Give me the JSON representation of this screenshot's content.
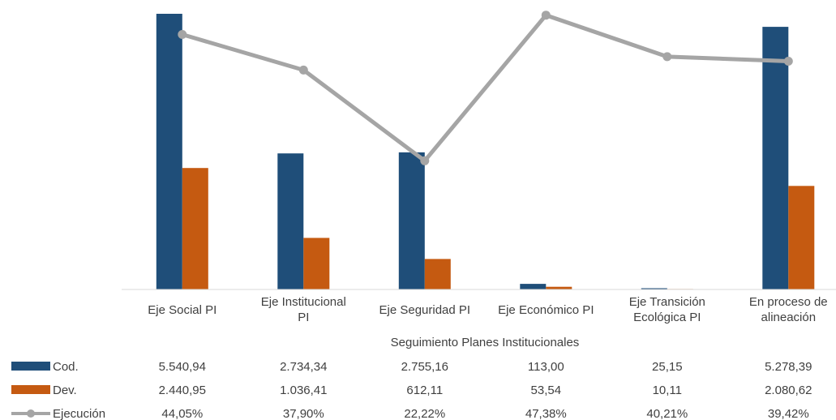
{
  "chart_data": {
    "type": "bar",
    "title": "",
    "xlabel": "Seguimiento Planes Institucionales",
    "ylabel": "",
    "grid": false,
    "legend": "data-table-left",
    "categories": [
      [
        "Eje Social PI"
      ],
      [
        "Eje Institucional",
        "PI"
      ],
      [
        "Eje Seguridad PI"
      ],
      [
        "Eje Económico PI"
      ],
      [
        "Eje Transición",
        "Ecológica PI"
      ],
      [
        "En proceso de",
        "alineación"
      ]
    ],
    "series": [
      {
        "name": "Cod.",
        "kind": "bar",
        "axis": "primary",
        "color": "#1F4E79",
        "values": [
          5540.94,
          2734.34,
          2755.16,
          113.0,
          25.15,
          5278.39
        ],
        "labels": [
          "5.540,94",
          "2.734,34",
          "2.755,16",
          "113,00",
          "25,15",
          "5.278,39"
        ]
      },
      {
        "name": "Dev.",
        "kind": "bar",
        "axis": "primary",
        "color": "#C55A11",
        "values": [
          2440.95,
          1036.41,
          612.11,
          53.54,
          10.11,
          2080.62
        ],
        "labels": [
          "2.440,95",
          "1.036,41",
          "612,11",
          "53,54",
          "10,11",
          "2.080,62"
        ]
      },
      {
        "name": "Ejecución",
        "kind": "line",
        "axis": "secondary",
        "color": "#A5A5A5",
        "values": [
          44.05,
          37.9,
          22.22,
          47.38,
          40.21,
          39.42
        ],
        "labels": [
          "44,05%",
          "37,90%",
          "22,22%",
          "47,38%",
          "40,21%",
          "39,42%"
        ]
      }
    ],
    "ylim": [
      0,
      5540.94
    ],
    "y2lim": [
      0,
      50
    ]
  }
}
